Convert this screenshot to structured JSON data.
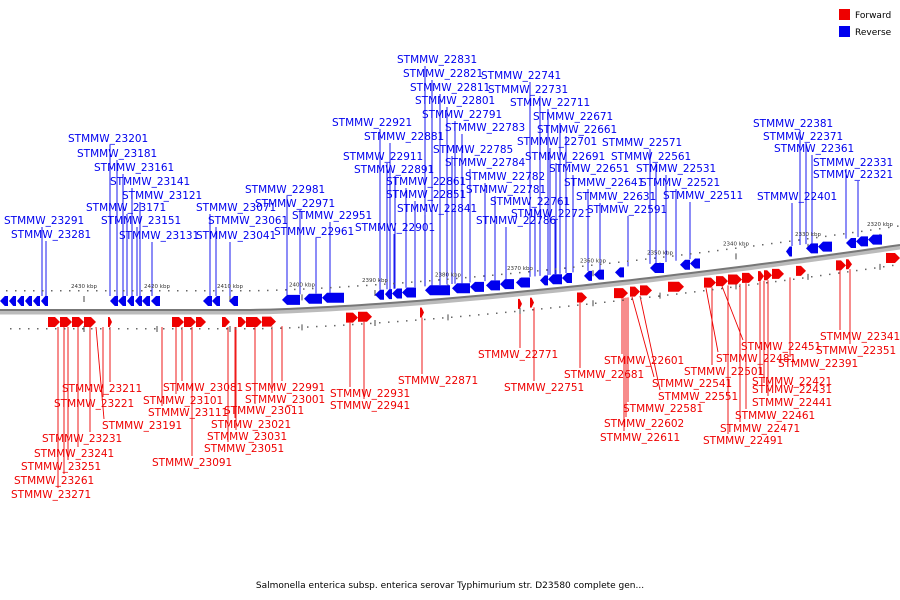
{
  "legend": [
    {
      "label": "Forward",
      "color": "#ee0000"
    },
    {
      "label": "Reverse",
      "color": "#0000ee"
    }
  ],
  "caption": "Salmonella enterica subsp. enterica serovar Typhimurium str. D23580 complete gen...",
  "colors": {
    "forward": "#ee0000",
    "reverse": "#0000ee",
    "axis": "#777777"
  },
  "ticks": [
    "2430 kbp",
    "2420 kbp",
    "2410 kbp",
    "2400 kbp",
    "2390 kbp",
    "2380 kbp",
    "2370 kbp",
    "2360 kbp",
    "2350 kbp",
    "2340 kbp",
    "2330 kbp",
    "2320 kbp"
  ],
  "reverse_genes": [
    "STMMW_23291",
    "STMMW_23281",
    "STMMW_23201",
    "STMMW_23181",
    "STMMW_23161",
    "STMMW_23141",
    "STMMW_23121",
    "STMMW_23171",
    "STMMW_23151",
    "STMMW_23131",
    "STMMW_23071",
    "STMMW_23061",
    "STMMW_23041",
    "STMMW_22981",
    "STMMW_22971",
    "STMMW_22951",
    "STMMW_22961",
    "STMMW_22921",
    "STMMW_22881",
    "STMMW_22911",
    "STMMW_22891",
    "STMMW_22861",
    "STMMW_22851",
    "STMMW_22841",
    "STMMW_22901",
    "STMMW_22831",
    "STMMW_22821",
    "STMMW_22811",
    "STMMW_22801",
    "STMMW_22791",
    "STMMW_22783",
    "STMMW_22785",
    "STMMW_22784",
    "STMMW_22782",
    "STMMW_22781",
    "STMMW_22786",
    "STMMW_22741",
    "STMMW_22731",
    "STMMW_22711",
    "STMMW_22671",
    "STMMW_22661",
    "STMMW_22701",
    "STMMW_22691",
    "STMMW_22761",
    "STMMW_22721",
    "STMMW_22651",
    "STMMW_22641",
    "STMMW_22631",
    "STMMW_22591",
    "STMMW_22571",
    "STMMW_22561",
    "STMMW_22531",
    "STMMW_22521",
    "STMMW_22511",
    "STMMW_22381",
    "STMMW_22371",
    "STMMW_22361",
    "STMMW_22401",
    "STMMW_22331",
    "STMMW_22321"
  ],
  "forward_genes": [
    "STMMW_23211",
    "STMMW_23221",
    "STMMW_23191",
    "STMMW_23231",
    "STMMW_23241",
    "STMMW_23251",
    "STMMW_23261",
    "STMMW_23271",
    "STMMW_23081",
    "STMMW_23101",
    "STMMW_23111",
    "STMMW_23091",
    "STMMW_22991",
    "STMMW_23001",
    "STMMW_23011",
    "STMMW_23021",
    "STMMW_23031",
    "STMMW_23051",
    "STMMW_22931",
    "STMMW_22941",
    "STMMW_22871",
    "STMMW_22771",
    "STMMW_22751",
    "STMMW_22681",
    "STMMW_22601",
    "STMMW_22541",
    "STMMW_22551",
    "STMMW_22581",
    "STMMW_22602",
    "STMMW_22611",
    "STMMW_22481",
    "STMMW_22501",
    "STMMW_22451",
    "STMMW_22421",
    "STMMW_22431",
    "STMMW_22441",
    "STMMW_22461",
    "STMMW_22471",
    "STMMW_22491",
    "STMMW_22391",
    "STMMW_22341",
    "STMMW_22351"
  ]
}
